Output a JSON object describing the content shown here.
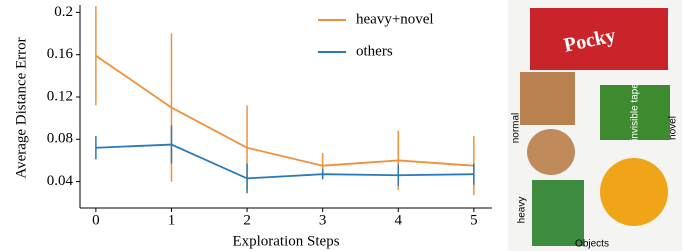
{
  "chart_data": {
    "type": "line",
    "xlabel": "Exploration Steps",
    "ylabel": "Average Distance Error",
    "x": [
      0,
      1,
      2,
      3,
      4,
      5
    ],
    "xlim": [
      -0.21,
      5.24
    ],
    "xticks": [
      0,
      1,
      2,
      3,
      4,
      5
    ],
    "ylim": [
      0.015,
      0.207
    ],
    "yticks": [
      0.04,
      0.08,
      0.12,
      0.16,
      0.2
    ],
    "legend": "upper right",
    "series": [
      {
        "name": "heavy+novel",
        "color": "#f0913a",
        "values": [
          0.159,
          0.11,
          0.072,
          0.055,
          0.06,
          0.055
        ],
        "errors": [
          0.047,
          0.07,
          0.04,
          0.012,
          0.028,
          0.028
        ]
      },
      {
        "name": "others",
        "color": "#2a7ab8",
        "values": [
          0.072,
          0.075,
          0.043,
          0.047,
          0.046,
          0.047
        ],
        "errors": [
          0.011,
          0.018,
          0.014,
          0.005,
          0.01,
          0.01
        ]
      }
    ]
  },
  "photo": {
    "labels": [
      "normal",
      "heavy",
      "novel"
    ],
    "caption": "Objects",
    "box_text": [
      "Pocky",
      "invisible tape"
    ]
  }
}
